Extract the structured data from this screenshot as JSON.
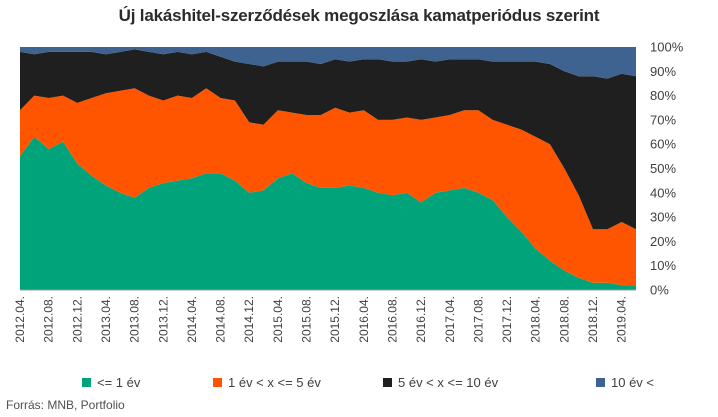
{
  "chart_data": {
    "type": "area",
    "stacked": true,
    "title": "Új lakáshitel-szerződések megoszlása kamatperiódus szerint",
    "xlabel": "",
    "ylabel": "",
    "ylim": [
      0,
      100
    ],
    "y_ticks": [
      "0%",
      "10%",
      "20%",
      "30%",
      "40%",
      "50%",
      "60%",
      "70%",
      "80%",
      "90%",
      "100%"
    ],
    "y_axis_position": "right",
    "legend_position": "bottom",
    "grid": false,
    "x": [
      "2012.04.",
      "2012.06.",
      "2012.08.",
      "2012.10.",
      "2012.12.",
      "2013.02.",
      "2013.04.",
      "2013.06.",
      "2013.08.",
      "2013.10.",
      "2013.12.",
      "2014.02.",
      "2014.04.",
      "2014.06.",
      "2014.08.",
      "2014.10.",
      "2014.12.",
      "2015.02.",
      "2015.04.",
      "2015.06.",
      "2015.08.",
      "2015.10.",
      "2015.12.",
      "2016.02.",
      "2016.04.",
      "2016.06.",
      "2016.08.",
      "2016.10.",
      "2016.12.",
      "2017.02.",
      "2017.04.",
      "2017.06.",
      "2017.08.",
      "2017.10.",
      "2017.12.",
      "2018.02.",
      "2018.04.",
      "2018.06.",
      "2018.08.",
      "2018.10.",
      "2018.12.",
      "2019.02.",
      "2019.04.",
      "2019.05."
    ],
    "x_tick_labels": [
      "2012.04.",
      "2012.08.",
      "2012.12.",
      "2013.04.",
      "2013.08.",
      "2013.12.",
      "2014.04.",
      "2014.08.",
      "2014.12.",
      "2015.04.",
      "2015.08.",
      "2015.12.",
      "2016.04.",
      "2016.08.",
      "2016.12.",
      "2017.04.",
      "2017.08.",
      "2017.12.",
      "2018.04.",
      "2018.08.",
      "2018.12.",
      "2019.04."
    ],
    "series": [
      {
        "name": "<= 1 év",
        "color": "#00a37a",
        "values": [
          55,
          63,
          58,
          61,
          52,
          47,
          43,
          40,
          38,
          42,
          44,
          45,
          46,
          48,
          48,
          45,
          40,
          41,
          46,
          48,
          44,
          42,
          42,
          43,
          42,
          40,
          39,
          40,
          36,
          40,
          41,
          42,
          40,
          37,
          30,
          24,
          17,
          12,
          8,
          5,
          3,
          3,
          2,
          2
        ]
      },
      {
        "name": "1 év < x <= 5 év",
        "color": "#ff5500",
        "values": [
          19,
          17,
          21,
          19,
          25,
          32,
          38,
          42,
          45,
          38,
          34,
          35,
          33,
          35,
          31,
          33,
          29,
          27,
          28,
          25,
          28,
          30,
          33,
          30,
          32,
          30,
          31,
          31,
          34,
          31,
          31,
          32,
          34,
          33,
          38,
          42,
          46,
          48,
          42,
          34,
          22,
          22,
          26,
          23
        ]
      },
      {
        "name": "5 év < x <= 10 év",
        "color": "#1f1f1f",
        "values": [
          24,
          17,
          19,
          18,
          21,
          19,
          16,
          16,
          16,
          18,
          19,
          18,
          18,
          15,
          17,
          16,
          24,
          24,
          20,
          21,
          22,
          21,
          20,
          21,
          21,
          25,
          24,
          23,
          25,
          23,
          23,
          21,
          21,
          24,
          26,
          28,
          31,
          33,
          40,
          49,
          63,
          62,
          61,
          63
        ]
      },
      {
        "name": "10 év <",
        "color": "#3f6390",
        "values": [
          2,
          3,
          2,
          2,
          2,
          2,
          3,
          2,
          1,
          2,
          3,
          2,
          3,
          2,
          4,
          6,
          7,
          8,
          6,
          6,
          6,
          7,
          5,
          6,
          5,
          5,
          6,
          6,
          5,
          6,
          5,
          5,
          5,
          6,
          6,
          6,
          6,
          7,
          10,
          12,
          12,
          13,
          11,
          12
        ]
      }
    ]
  },
  "source_text": "Forrás: MNB, Portfolio"
}
